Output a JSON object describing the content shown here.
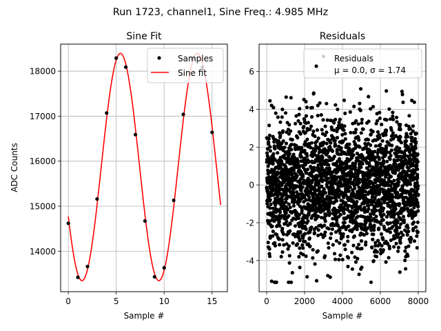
{
  "figure": {
    "suptitle": "Run 1723, channel1, Sine Freq.: 4.985 MHz"
  },
  "chart_data": [
    {
      "type": "scatter",
      "title": "Sine Fit",
      "xlabel": "Sample #",
      "ylabel": "ADC Counts",
      "xlim": [
        -0.8,
        16.6
      ],
      "ylim": [
        13100,
        18600
      ],
      "xticks": [
        0,
        5,
        10,
        15
      ],
      "yticks": [
        14000,
        15000,
        16000,
        17000,
        18000
      ],
      "grid": true,
      "legend_position": "top-right",
      "series": [
        {
          "name": "Samples",
          "kind": "points",
          "color": "#000000",
          "x": [
            0,
            1,
            2,
            3,
            4,
            5,
            6,
            7,
            8,
            9,
            10,
            11,
            12,
            13,
            14,
            15
          ],
          "y": [
            14620,
            13420,
            13660,
            15160,
            17070,
            18290,
            18090,
            16590,
            14670,
            13430,
            13630,
            15130,
            17040,
            18280,
            18090,
            16640
          ]
        },
        {
          "name": "Sine fit",
          "kind": "line",
          "color": "#ff0000",
          "model": {
            "offset": 15870,
            "amplitude": 2525,
            "period_samples": 8.02,
            "x_at_peak": 5.44,
            "x_range": [
              0,
              15.9
            ]
          }
        }
      ]
    },
    {
      "type": "scatter",
      "title": "Residuals",
      "xlabel": "Sample #",
      "ylabel": "",
      "xlim": [
        -400,
        8400
      ],
      "ylim": [
        -5.65,
        7.45
      ],
      "xticks": [
        0,
        2000,
        4000,
        6000,
        8000
      ],
      "yticks": [
        -4,
        -2,
        0,
        2,
        4,
        6
      ],
      "grid": true,
      "legend_position": "top-right",
      "series": [
        {
          "name": "Residuals",
          "kind": "points",
          "color": "#000000",
          "n_points": 8000,
          "x_range": [
            0,
            8000
          ],
          "mean": 0.0,
          "sigma": 1.74,
          "y_min": -5.15,
          "y_max": 6.8
        }
      ],
      "legend_stats": "μ = 0.0, σ = 1.74"
    }
  ]
}
